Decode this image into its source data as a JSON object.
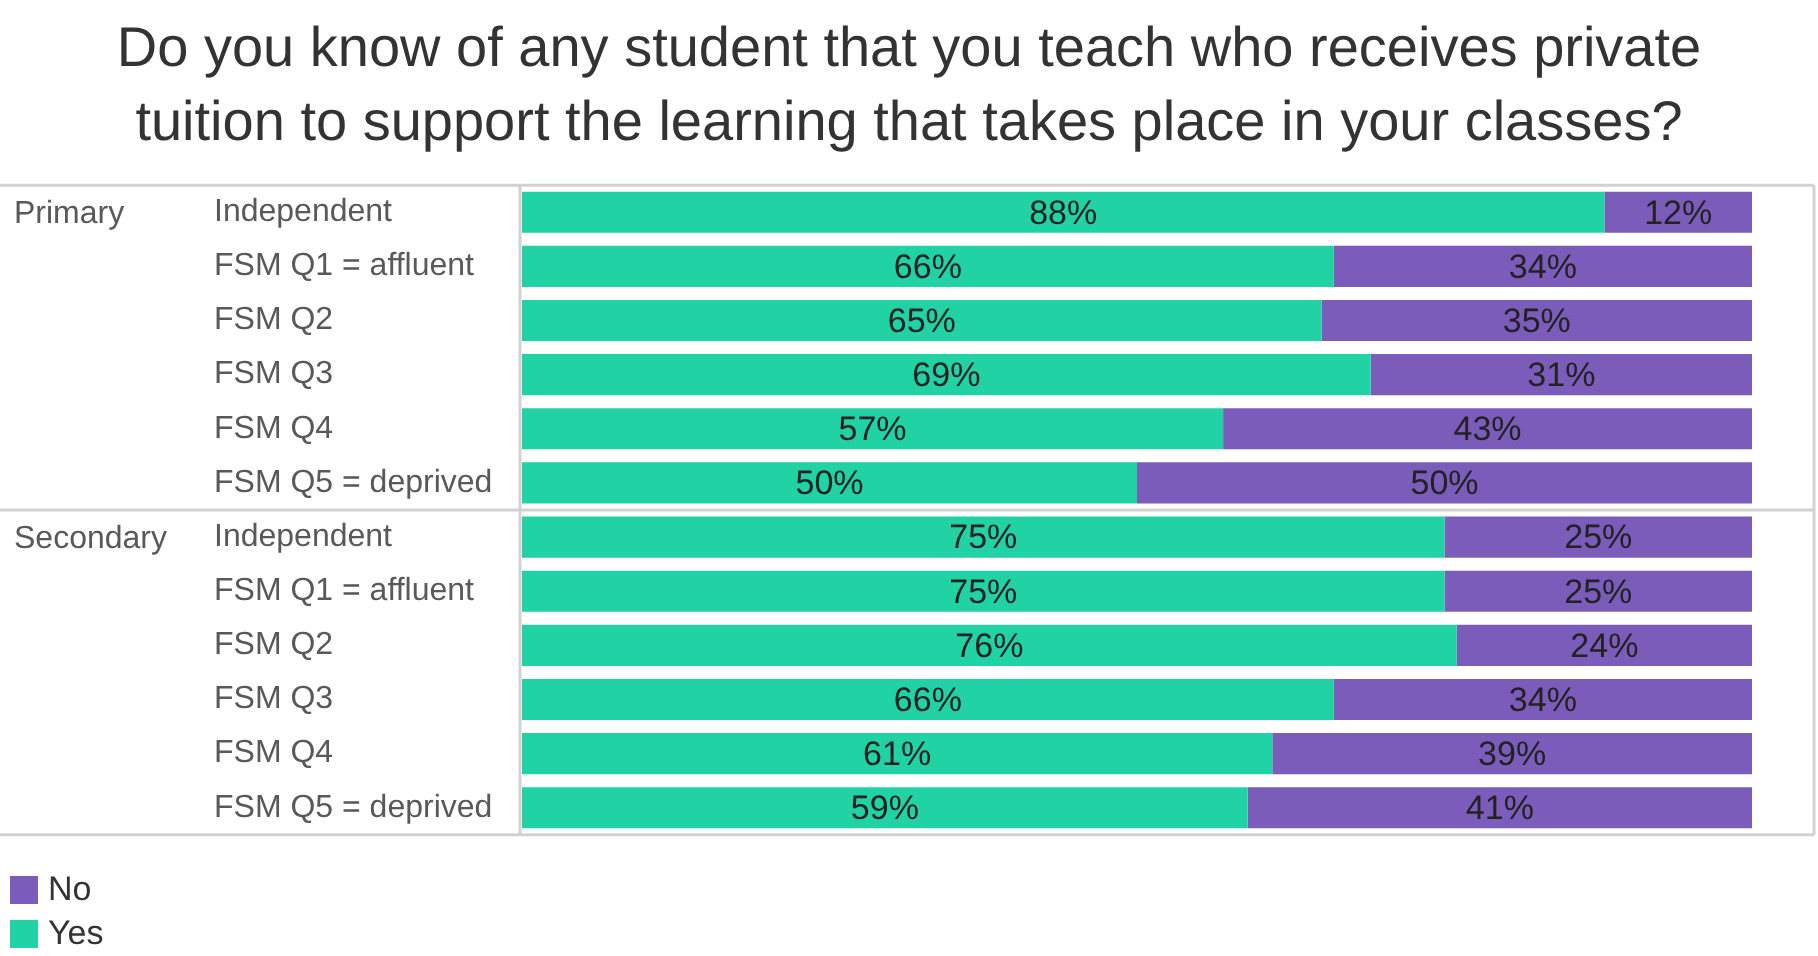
{
  "chart_data": {
    "type": "bar",
    "orientation": "horizontal",
    "stacked": true,
    "tick_labels": "y",
    "legend": "bottom left",
    "title": "Do you know of any student that you teach who receives private tuition to support the learning that takes place in your classes?",
    "annotations": [
      "Primary",
      "Secondary"
    ],
    "categories": [
      "Independent",
      "FSM Q1 = affluent",
      "FSM Q2",
      "FSM Q3",
      "FSM Q4",
      "FSM Q5 = deprived",
      "Independent",
      "FSM Q1 = affluent",
      "FSM Q2",
      "FSM Q3",
      "FSM Q4",
      "FSM Q5 = deprived"
    ],
    "series": [
      {
        "name": "Yes",
        "color": "#21d2a5",
        "values": [
          88,
          66,
          65,
          69,
          57,
          50,
          75,
          75,
          76,
          66,
          61,
          59
        ],
        "value_labels": [
          "88%",
          "66%",
          "65%",
          "69%",
          "57%",
          "50%",
          "75%",
          "75%",
          "76%",
          "66%",
          "61%",
          "59%"
        ]
      },
      {
        "name": "No",
        "color": "#7c5cbb",
        "values": [
          12,
          34,
          35,
          31,
          43,
          50,
          25,
          25,
          24,
          34,
          39,
          41
        ],
        "value_labels": [
          "12%",
          "34%",
          "35%",
          "31%",
          "43%",
          "50%",
          "25%",
          "25%",
          "24%",
          "34%",
          "39%",
          "41%"
        ]
      }
    ]
  }
}
